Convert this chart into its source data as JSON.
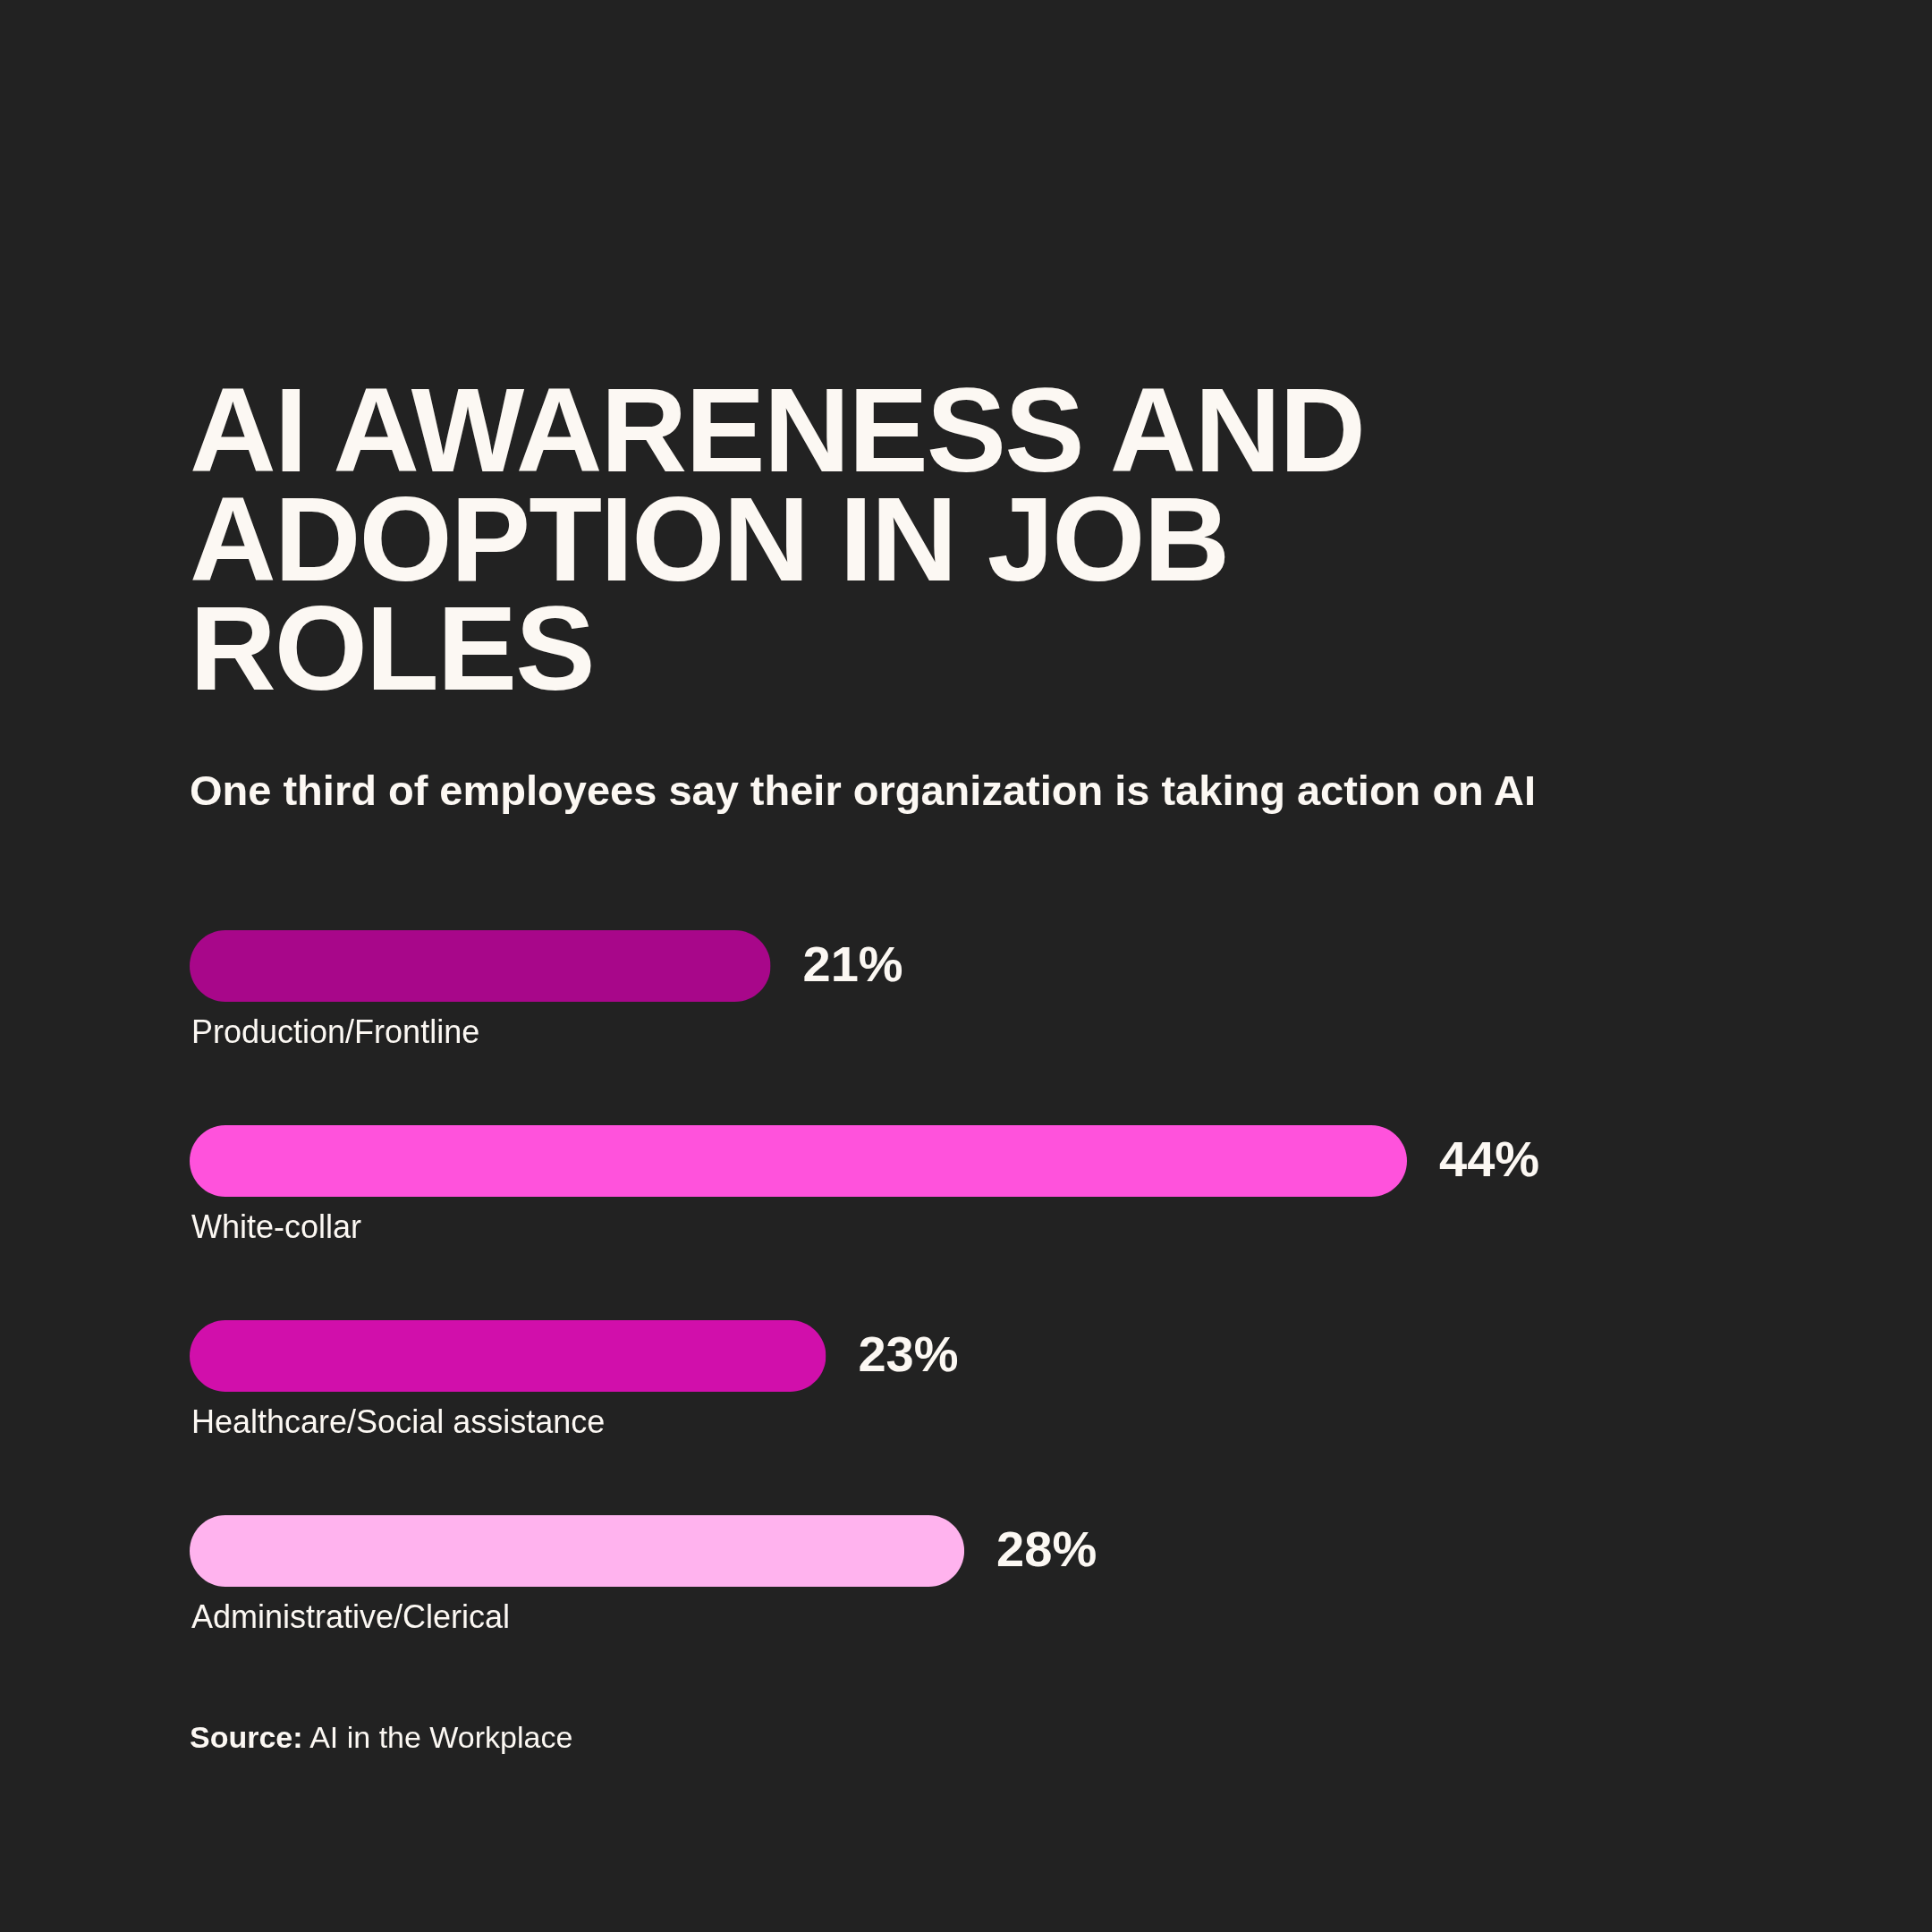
{
  "chart_data": {
    "type": "bar",
    "orientation": "horizontal",
    "title": "AI AWARENESS AND ADOPTION IN JOB ROLES",
    "subtitle": "One third of employees say their organization is taking action on AI",
    "categories": [
      "Production/Frontline",
      "White-collar",
      "Healthcare/Social assistance",
      "Administrative/Clerical"
    ],
    "values": [
      21,
      44,
      23,
      28
    ],
    "colors": [
      "#a8078a",
      "#ff52dc",
      "#d10fab",
      "#ffb3ee"
    ],
    "value_labels": [
      "21%",
      "44%",
      "23%",
      "28%"
    ],
    "annotations": [
      "Source: AI in the Workplace"
    ]
  }
}
